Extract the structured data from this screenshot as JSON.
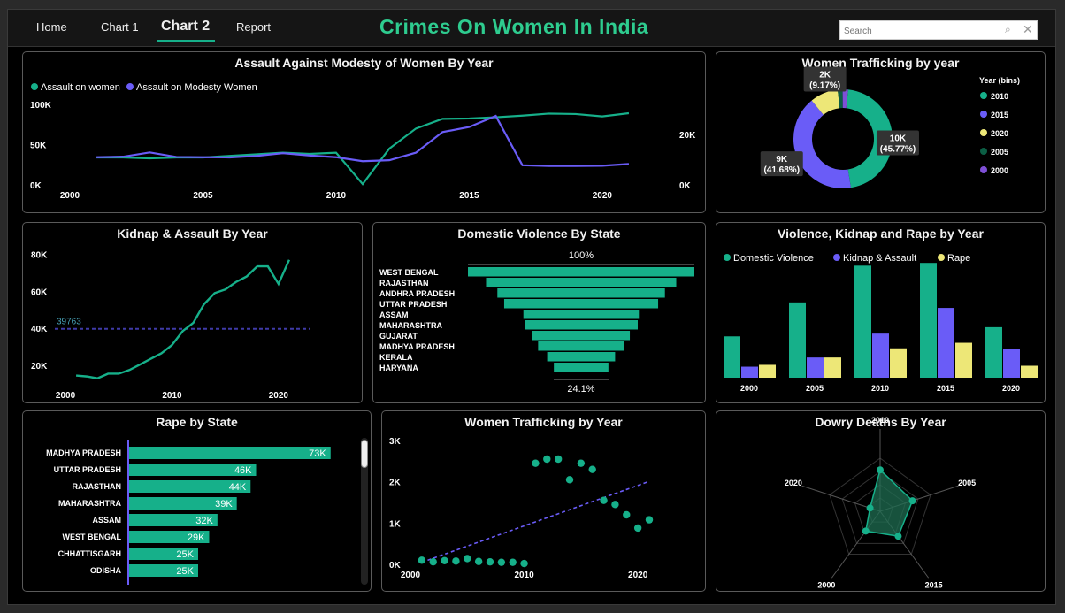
{
  "nav": {
    "items": [
      "Home",
      "Chart 1",
      "Chart 2",
      "Report"
    ],
    "active": 2
  },
  "header": {
    "title": "Crimes On Women In India"
  },
  "search": {
    "placeholder": "Search",
    "value": ""
  },
  "colors": {
    "green": "#16b08a",
    "blue": "#6a5cf7",
    "yellow": "#ede777",
    "dark_green": "#0b5e44",
    "purple": "#7e4fd6",
    "title_green": "#2ecc8f"
  },
  "chart_data": [
    {
      "id": "assault",
      "type": "line",
      "title": "Assault Against Modesty of Women By Year",
      "legend": "top-left",
      "x": [
        2001,
        2002,
        2003,
        2004,
        2005,
        2006,
        2007,
        2008,
        2009,
        2010,
        2011,
        2012,
        2013,
        2014,
        2015,
        2016,
        2017,
        2018,
        2019,
        2020,
        2021
      ],
      "series": [
        {
          "name": "Assault on women",
          "axis": "left",
          "values": [
            34000,
            34000,
            33000,
            34000,
            34000,
            36000,
            38000,
            40000,
            38500,
            40000,
            1000,
            45000,
            70000,
            82000,
            82500,
            84000,
            86000,
            88500,
            88000,
            85000,
            89000
          ]
        },
        {
          "name": "Assault on Modesty Women",
          "axis": "right",
          "values": [
            11000,
            11200,
            12900,
            11100,
            11000,
            10900,
            11500,
            12600,
            11700,
            11000,
            9400,
            9800,
            12800,
            21000,
            23000,
            27400,
            7800,
            7500,
            7500,
            7600,
            8300
          ]
        }
      ],
      "y_ticks": [
        "0K",
        "50K",
        "100K"
      ],
      "ylim": [
        0,
        100000
      ],
      "y2_ticks": [
        "0K",
        "20K"
      ],
      "y2lim": [
        0,
        32000
      ],
      "x_ticks": [
        "2000",
        "2005",
        "2010",
        "2015",
        "2020"
      ],
      "xlim": [
        2000,
        2021.5
      ]
    },
    {
      "id": "traffick_donut",
      "type": "pie",
      "title": "Women Trafficking by year",
      "legend_title": "Year (bins)",
      "legend": [
        "2010",
        "2015",
        "2020",
        "2005",
        "2000"
      ],
      "slices": [
        {
          "name": "2010",
          "value": 45.77,
          "label": "10K",
          "pct": "(45.77%)"
        },
        {
          "name": "2015",
          "value": 41.68,
          "label": "9K",
          "pct": "(41.68%)"
        },
        {
          "name": "2020",
          "value": 9.17,
          "label": "2K",
          "pct": "(9.17%)"
        },
        {
          "name": "2005",
          "value": 1.6,
          "label": "",
          "pct": ""
        },
        {
          "name": "2000",
          "value": 1.78,
          "label": "",
          "pct": ""
        }
      ]
    },
    {
      "id": "kidnap",
      "type": "line",
      "title": "Kidnap & Assault By Year",
      "x": [
        2001,
        2002,
        2003,
        2004,
        2005,
        2006,
        2007,
        2008,
        2009,
        2010,
        2011,
        2012,
        2013,
        2014,
        2015,
        2016,
        2017,
        2018,
        2019,
        2020,
        2021
      ],
      "values": [
        14500,
        14000,
        13000,
        15500,
        15500,
        17500,
        20500,
        23500,
        26500,
        31000,
        38500,
        43000,
        53000,
        59000,
        61000,
        65000,
        68000,
        73500,
        73500,
        64000,
        77000
      ],
      "average_line": 39763,
      "average_label": "39763",
      "y_ticks": [
        "20K",
        "40K",
        "60K",
        "80K"
      ],
      "ylim": [
        10000,
        85000
      ],
      "x_ticks": [
        "2000",
        "2010",
        "2020"
      ],
      "xlim": [
        1999,
        2023
      ]
    },
    {
      "id": "domestic",
      "type": "bar",
      "orientation": "funnel",
      "title": "Domestic Violence By State",
      "categories": [
        "WEST BENGAL",
        "RAJASTHAN",
        "ANDHRA PRADESH",
        "UTTAR PRADESH",
        "ASSAM",
        "MAHARASHTRA",
        "GUJARAT",
        "MADHYA PRADESH",
        "KERALA",
        "HARYANA"
      ],
      "values": [
        100,
        84,
        74,
        68,
        51,
        50,
        43,
        38,
        30,
        24.1
      ],
      "top_label": "100%",
      "bottom_label": "24.1%"
    },
    {
      "id": "vkr",
      "type": "bar",
      "title": "Violence, Kidnap and Rape by Year",
      "legend": "top-left",
      "categories": [
        "2000",
        "2005",
        "2010",
        "2015",
        "2020"
      ],
      "series": [
        {
          "name": "Domestic Violence",
          "values": [
            45,
            82,
            122,
            125,
            55
          ]
        },
        {
          "name": "Kidnap & Assault",
          "values": [
            12,
            22,
            48,
            76,
            31
          ]
        },
        {
          "name": "Rape",
          "values": [
            14,
            22,
            32,
            38,
            13
          ]
        }
      ],
      "ylim": [
        0,
        130
      ]
    },
    {
      "id": "rape",
      "type": "bar",
      "orientation": "horizontal",
      "title": "Rape by State",
      "categories": [
        "MADHYA PRADESH",
        "UTTAR PRADESH",
        "RAJASTHAN",
        "MAHARASHTRA",
        "ASSAM",
        "WEST BENGAL",
        "CHHATTISGARH",
        "ODISHA"
      ],
      "values": [
        73000,
        46000,
        44000,
        39000,
        32000,
        29000,
        25000,
        25000
      ],
      "labels": [
        "73K",
        "46K",
        "44K",
        "39K",
        "32K",
        "29K",
        "25K",
        "25K"
      ],
      "xlim": [
        0,
        75000
      ]
    },
    {
      "id": "traffick_scatter",
      "type": "scatter",
      "title": "Women Trafficking by Year",
      "points": [
        [
          2001,
          100
        ],
        [
          2002,
          60
        ],
        [
          2003,
          90
        ],
        [
          2004,
          80
        ],
        [
          2005,
          140
        ],
        [
          2006,
          70
        ],
        [
          2007,
          60
        ],
        [
          2008,
          50
        ],
        [
          2009,
          50
        ],
        [
          2010,
          20
        ],
        [
          2011,
          2450
        ],
        [
          2012,
          2550
        ],
        [
          2013,
          2550
        ],
        [
          2014,
          2050
        ],
        [
          2015,
          2450
        ],
        [
          2016,
          2300
        ],
        [
          2017,
          1550
        ],
        [
          2018,
          1450
        ],
        [
          2019,
          1200
        ],
        [
          2020,
          880
        ],
        [
          2021,
          1080
        ]
      ],
      "trend": [
        [
          2001,
          50
        ],
        [
          2021,
          2010
        ]
      ],
      "y_ticks": [
        "0K",
        "1K",
        "2K",
        "3K"
      ],
      "ylim": [
        0,
        3000
      ],
      "x_ticks": [
        "2000",
        "2010",
        "2020"
      ],
      "xlim": [
        2000,
        2021
      ]
    },
    {
      "id": "dowry",
      "type": "radar",
      "title": "Dowry Deaths By Year",
      "axes": [
        "2010",
        "2005",
        "2015",
        "2000",
        "2020"
      ],
      "values": [
        0.78,
        0.64,
        0.58,
        0.46,
        0.2
      ]
    }
  ]
}
